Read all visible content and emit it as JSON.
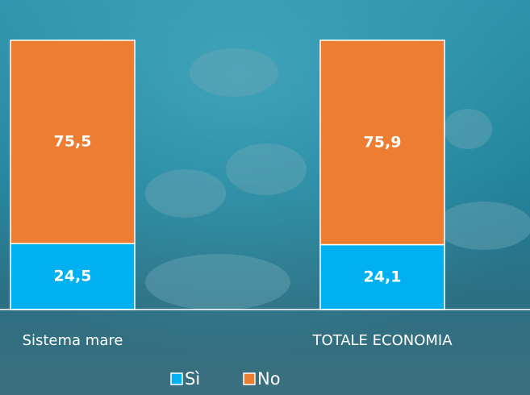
{
  "chart_data": {
    "type": "stacked-bar",
    "categories": [
      "Sistema mare",
      "TOTALE ECONOMIA"
    ],
    "series": [
      {
        "name": "Sì",
        "color": "#00b0f0",
        "values": [
          24.5,
          24.1
        ],
        "value_labels": [
          "24,5",
          "24,1"
        ]
      },
      {
        "name": "No",
        "color": "#ed7d31",
        "values": [
          75.5,
          75.9
        ],
        "value_labels": [
          "75,5",
          "75,9"
        ]
      }
    ],
    "ylim": [
      0,
      100
    ]
  }
}
